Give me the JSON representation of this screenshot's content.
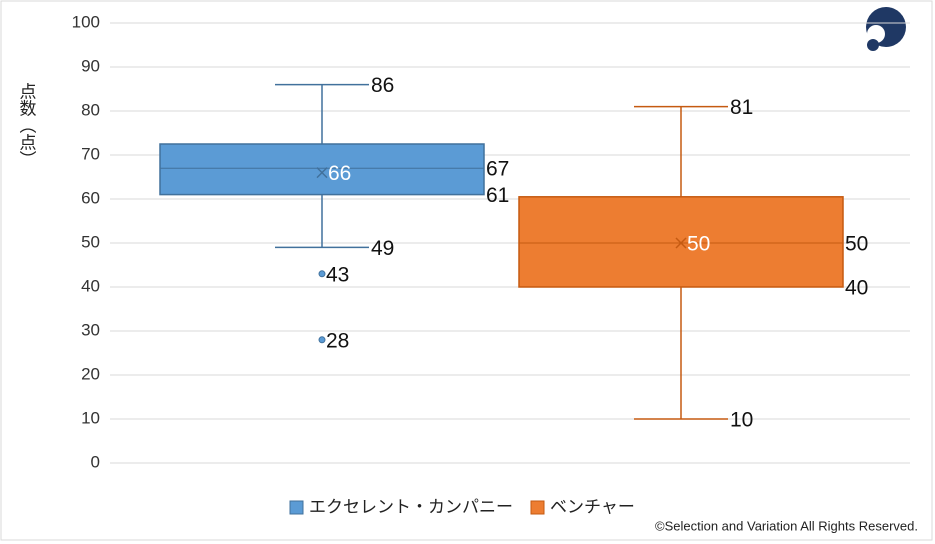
{
  "chart_data": {
    "type": "box",
    "y_label": "点数（点）",
    "ylim": [
      0,
      100
    ],
    "yticks": [
      0,
      10,
      20,
      30,
      40,
      50,
      60,
      70,
      80,
      90,
      100
    ],
    "grid": true,
    "legend": "bottom",
    "series": [
      {
        "name": "エクセレント・カンパニー",
        "color": "#5b9bd5",
        "edge": "#41719c",
        "min": 49,
        "q1": 61,
        "median": 67,
        "q3": 72.5,
        "max": 86,
        "mean": 66,
        "outliers": [
          43,
          28
        ]
      },
      {
        "name": "ベンチャー",
        "color": "#ed7d31",
        "edge": "#c55a11",
        "min": 10,
        "q1": 40,
        "median": 50,
        "q3": 60.5,
        "max": 81,
        "mean": 50,
        "outliers": []
      }
    ],
    "footer": "©Selection and Variation All Rights Reserved."
  }
}
